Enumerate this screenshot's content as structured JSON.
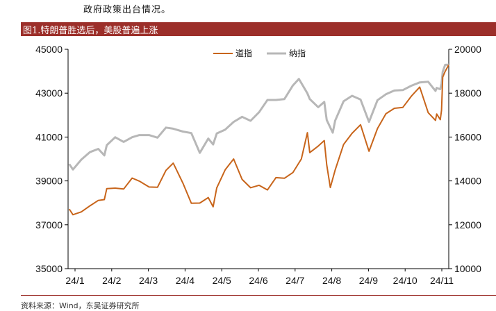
{
  "body_text": "政府政策出台情况。",
  "figure_title": "图1.特朗普胜选后，美股普遍上涨",
  "source_note": "资料来源：Wind，东吴证券研究所",
  "colors": {
    "banner": "#9c2f2a",
    "dow": "#c8651b",
    "nasdaq": "#b7b7b7",
    "axis": "#000000"
  },
  "chart_data": {
    "type": "line",
    "title": "",
    "legend_position": "top-center",
    "grid": false,
    "x_ticks": [
      "24/1",
      "24/2",
      "24/3",
      "24/4",
      "24/5",
      "24/6",
      "24/7",
      "24/8",
      "24/9",
      "24/10",
      "24/11"
    ],
    "x_range": [
      "2024-01-01",
      "2024-11-11"
    ],
    "y_left": {
      "series": "道指",
      "range": [
        35000,
        45000
      ],
      "ticks": [
        "35000",
        "37000",
        "39000",
        "41000",
        "43000",
        "45000"
      ]
    },
    "y_right": {
      "series": "纳指",
      "range": [
        10000,
        20000
      ],
      "ticks": [
        "10000",
        "12000",
        "14000",
        "16000",
        "18000",
        "20000"
      ]
    },
    "series": [
      {
        "name": "道指",
        "axis": "left",
        "points": [
          [
            "2024-01-02",
            37715
          ],
          [
            "2024-01-05",
            37460
          ],
          [
            "2024-01-12",
            37590
          ],
          [
            "2024-01-19",
            37860
          ],
          [
            "2024-01-26",
            38110
          ],
          [
            "2024-01-31",
            38150
          ],
          [
            "2024-02-02",
            38650
          ],
          [
            "2024-02-09",
            38670
          ],
          [
            "2024-02-16",
            38630
          ],
          [
            "2024-02-23",
            39130
          ],
          [
            "2024-02-29",
            38990
          ],
          [
            "2024-03-08",
            38720
          ],
          [
            "2024-03-15",
            38710
          ],
          [
            "2024-03-22",
            39480
          ],
          [
            "2024-03-28",
            39810
          ],
          [
            "2024-04-05",
            38900
          ],
          [
            "2024-04-12",
            37980
          ],
          [
            "2024-04-19",
            37990
          ],
          [
            "2024-04-26",
            38240
          ],
          [
            "2024-04-30",
            37820
          ],
          [
            "2024-05-03",
            38680
          ],
          [
            "2024-05-10",
            39510
          ],
          [
            "2024-05-17",
            40000
          ],
          [
            "2024-05-24",
            39070
          ],
          [
            "2024-05-31",
            38690
          ],
          [
            "2024-06-07",
            38800
          ],
          [
            "2024-06-14",
            38590
          ],
          [
            "2024-06-21",
            39150
          ],
          [
            "2024-06-28",
            39120
          ],
          [
            "2024-07-05",
            39380
          ],
          [
            "2024-07-12",
            40000
          ],
          [
            "2024-07-17",
            41200
          ],
          [
            "2024-07-19",
            40290
          ],
          [
            "2024-07-26",
            40590
          ],
          [
            "2024-07-31",
            40840
          ],
          [
            "2024-08-02",
            39740
          ],
          [
            "2024-08-05",
            38700
          ],
          [
            "2024-08-09",
            39500
          ],
          [
            "2024-08-16",
            40660
          ],
          [
            "2024-08-23",
            41170
          ],
          [
            "2024-08-30",
            41560
          ],
          [
            "2024-09-06",
            40350
          ],
          [
            "2024-09-13",
            41390
          ],
          [
            "2024-09-20",
            42060
          ],
          [
            "2024-09-27",
            42310
          ],
          [
            "2024-10-04",
            42350
          ],
          [
            "2024-10-11",
            42860
          ],
          [
            "2024-10-18",
            43280
          ],
          [
            "2024-10-25",
            42110
          ],
          [
            "2024-10-31",
            41760
          ],
          [
            "2024-11-01",
            42050
          ],
          [
            "2024-11-04",
            41790
          ],
          [
            "2024-11-05",
            42220
          ],
          [
            "2024-11-06",
            43730
          ],
          [
            "2024-11-08",
            43990
          ],
          [
            "2024-11-11",
            44290
          ]
        ]
      },
      {
        "name": "纳指",
        "axis": "right",
        "points": [
          [
            "2024-01-02",
            14770
          ],
          [
            "2024-01-05",
            14520
          ],
          [
            "2024-01-12",
            14970
          ],
          [
            "2024-01-19",
            15310
          ],
          [
            "2024-01-26",
            15460
          ],
          [
            "2024-01-31",
            15160
          ],
          [
            "2024-02-02",
            15630
          ],
          [
            "2024-02-09",
            15990
          ],
          [
            "2024-02-16",
            15780
          ],
          [
            "2024-02-23",
            15990
          ],
          [
            "2024-02-29",
            16090
          ],
          [
            "2024-03-08",
            16090
          ],
          [
            "2024-03-15",
            15970
          ],
          [
            "2024-03-22",
            16430
          ],
          [
            "2024-03-28",
            16380
          ],
          [
            "2024-04-05",
            16250
          ],
          [
            "2024-04-12",
            16180
          ],
          [
            "2024-04-19",
            15280
          ],
          [
            "2024-04-26",
            15930
          ],
          [
            "2024-04-30",
            15660
          ],
          [
            "2024-05-03",
            16160
          ],
          [
            "2024-05-10",
            16340
          ],
          [
            "2024-05-17",
            16690
          ],
          [
            "2024-05-24",
            16920
          ],
          [
            "2024-05-31",
            16740
          ],
          [
            "2024-06-07",
            17130
          ],
          [
            "2024-06-14",
            17690
          ],
          [
            "2024-06-21",
            17690
          ],
          [
            "2024-06-28",
            17730
          ],
          [
            "2024-07-05",
            18350
          ],
          [
            "2024-07-10",
            18650
          ],
          [
            "2024-07-17",
            17990
          ],
          [
            "2024-07-19",
            17730
          ],
          [
            "2024-07-26",
            17360
          ],
          [
            "2024-07-31",
            17600
          ],
          [
            "2024-08-02",
            16780
          ],
          [
            "2024-08-07",
            16200
          ],
          [
            "2024-08-09",
            16750
          ],
          [
            "2024-08-16",
            17630
          ],
          [
            "2024-08-23",
            17880
          ],
          [
            "2024-08-30",
            17710
          ],
          [
            "2024-09-06",
            16690
          ],
          [
            "2024-09-13",
            17680
          ],
          [
            "2024-09-20",
            17950
          ],
          [
            "2024-09-27",
            18120
          ],
          [
            "2024-10-04",
            18140
          ],
          [
            "2024-10-11",
            18340
          ],
          [
            "2024-10-18",
            18490
          ],
          [
            "2024-10-25",
            18520
          ],
          [
            "2024-10-31",
            18100
          ],
          [
            "2024-11-01",
            18240
          ],
          [
            "2024-11-04",
            18180
          ],
          [
            "2024-11-05",
            18440
          ],
          [
            "2024-11-06",
            18980
          ],
          [
            "2024-11-08",
            19290
          ],
          [
            "2024-11-11",
            19300
          ]
        ]
      }
    ]
  }
}
